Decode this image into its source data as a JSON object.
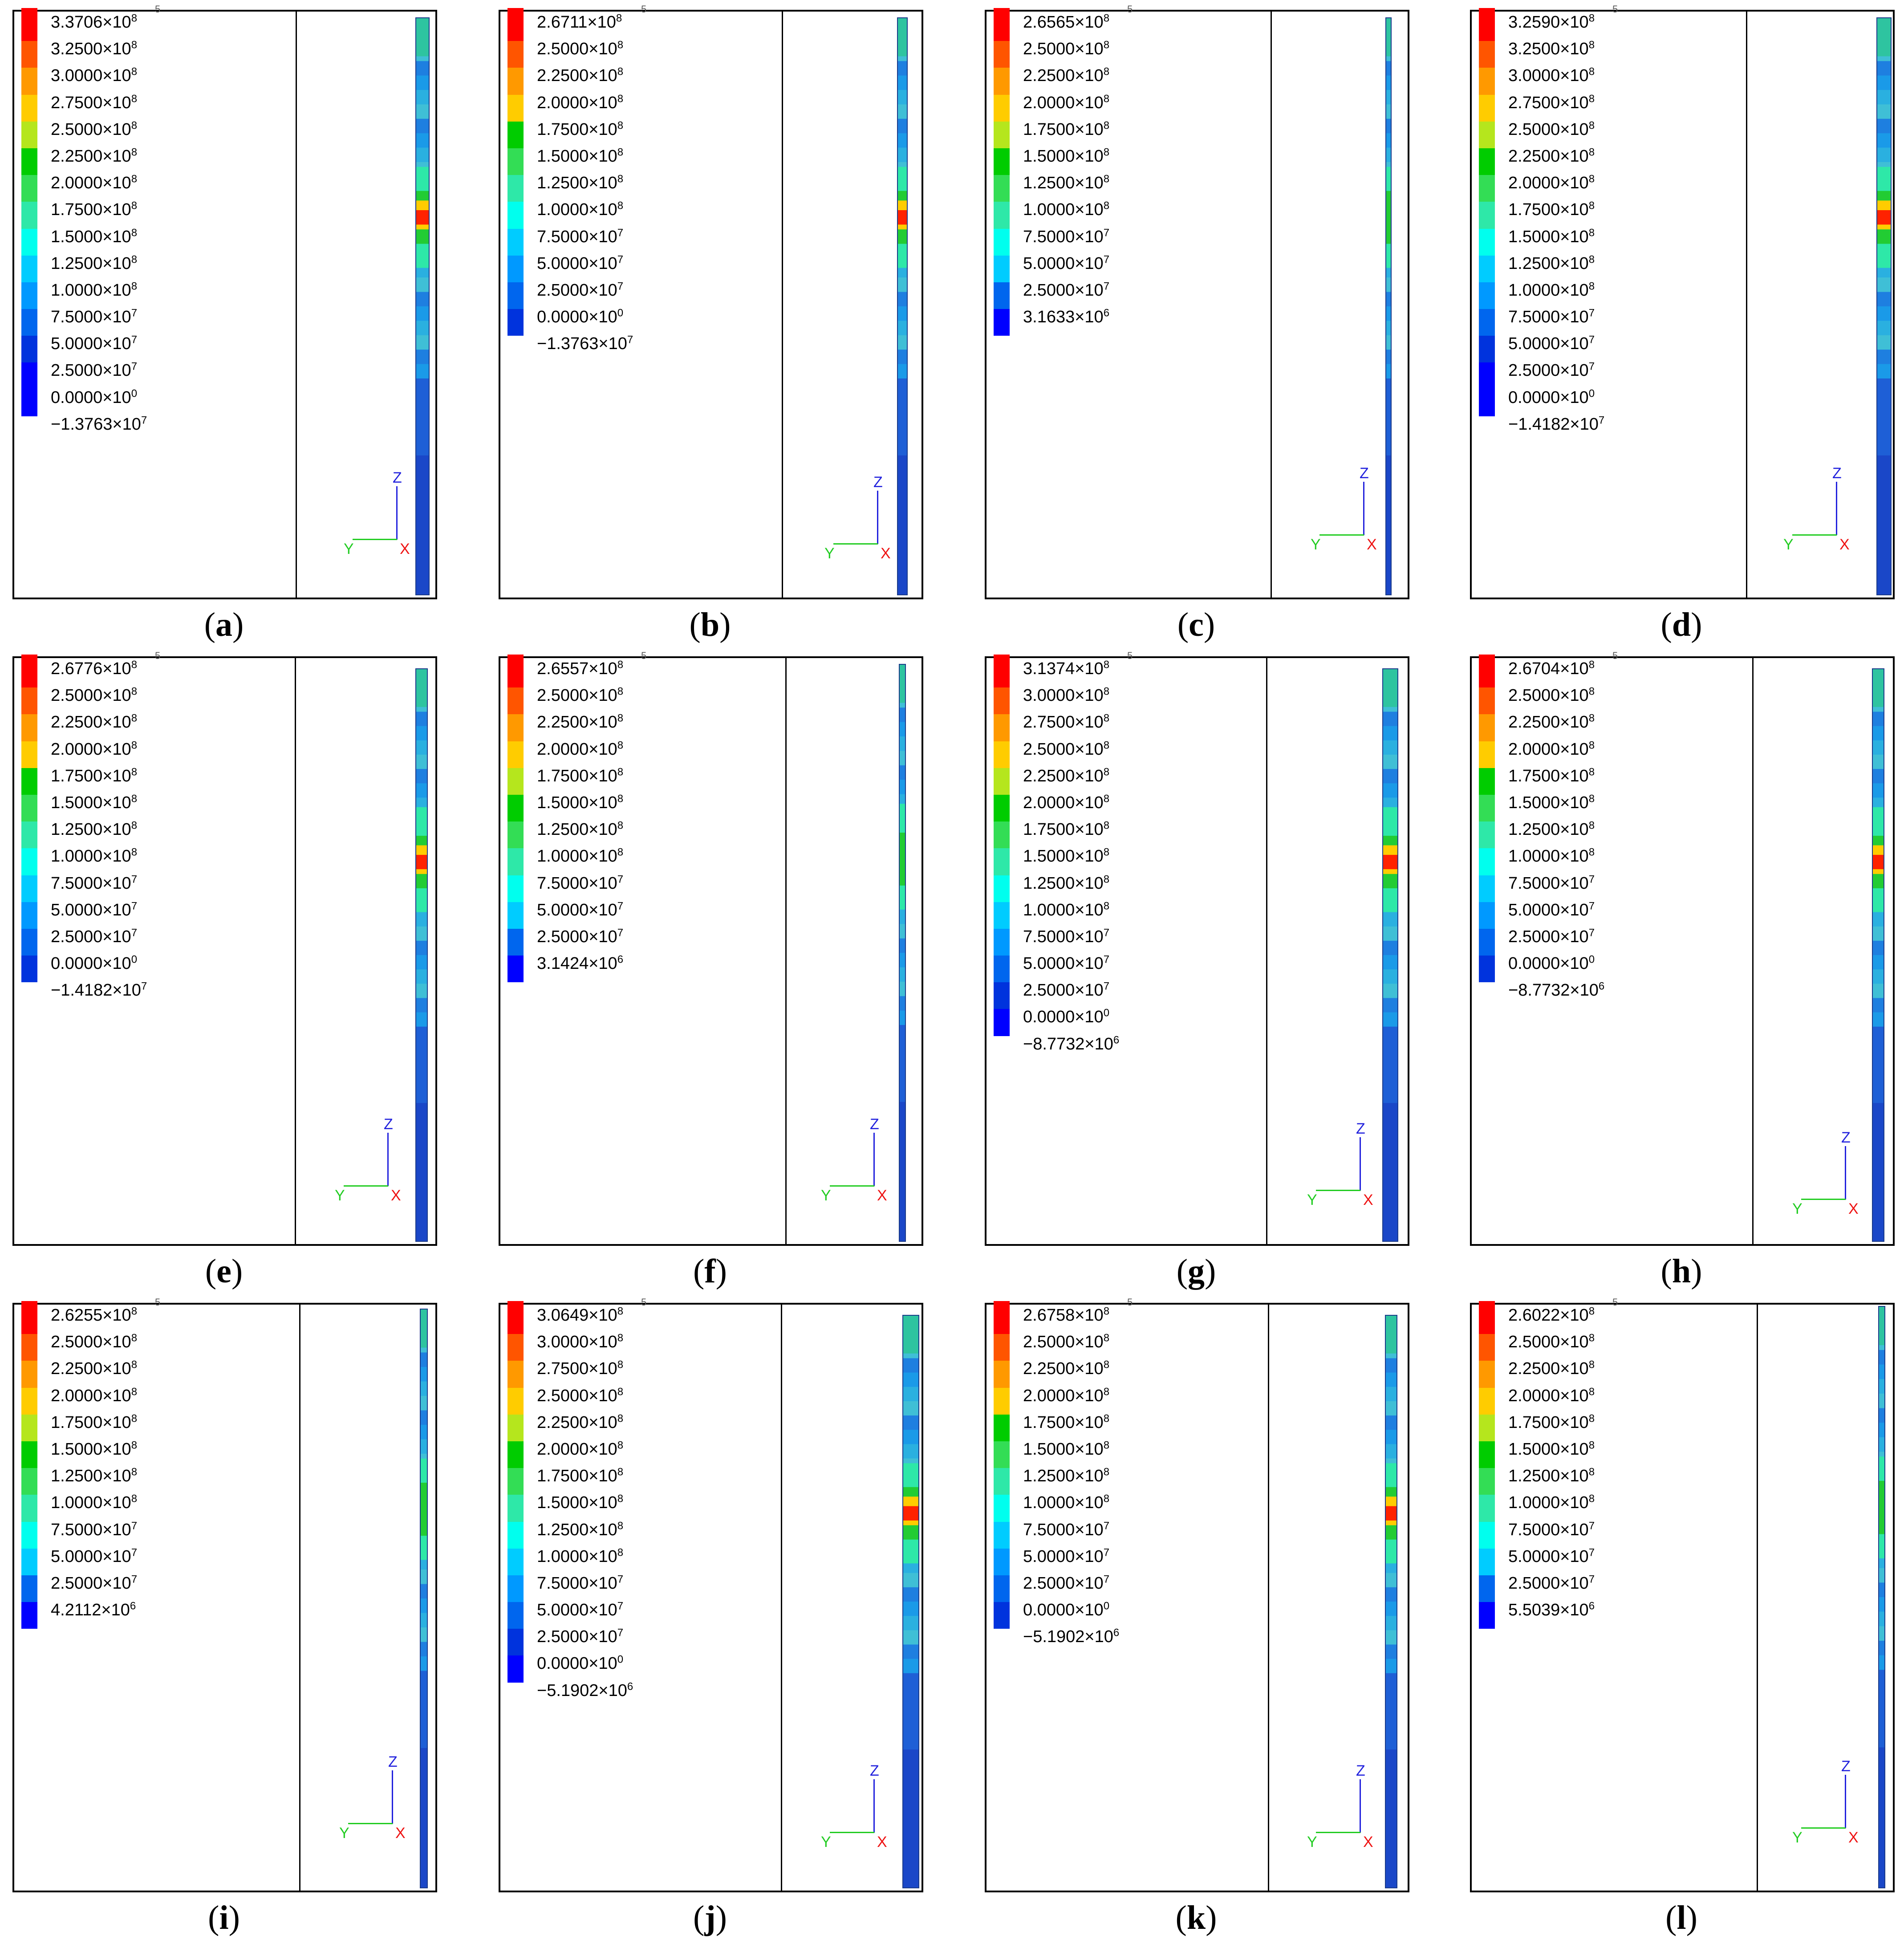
{
  "colors": [
    "#ff0000",
    "#ff5500",
    "#ff9900",
    "#ffcc00",
    "#b5e61d",
    "#00cc00",
    "#33dd55",
    "#2ee8a8",
    "#00ffee",
    "#00ccff",
    "#0099ff",
    "#0066ee",
    "#0033dd",
    "#0000ff"
  ],
  "unit_fragment": "5",
  "triad": {
    "z": "Z",
    "y": "Y",
    "x": "X"
  },
  "panels": [
    {
      "id": "a",
      "labels": [
        "3.3706×10^8",
        "3.2500×10^8",
        "3.0000×10^8",
        "2.7500×10^8",
        "2.5000×10^8",
        "2.2500×10^8",
        "2.0000×10^8",
        "1.7500×10^8",
        "1.5000×10^8",
        "1.2500×10^8",
        "1.0000×10^8",
        "7.5000×10^7",
        "5.0000×10^7",
        "2.5000×10^7",
        "0.0000×10^0",
        "−1.3763×10^7"
      ],
      "swatches": [
        "#ff0000",
        "#ff5500",
        "#ff9900",
        "#ffcc00",
        "#b5e61d",
        "#00cc00",
        "#33dd55",
        "#2ee8a8",
        "#00ffee",
        "#00ccff",
        "#0099ff",
        "#0066ee",
        "#0033dd",
        "#0000ff",
        "#0000ff"
      ],
      "caption": "a",
      "hot_center": 0.34,
      "hot_level": 1.0,
      "rod_width": 30
    },
    {
      "id": "b",
      "labels": [
        "2.6711×10^8",
        "2.5000×10^8",
        "2.2500×10^8",
        "2.0000×10^8",
        "1.7500×10^8",
        "1.5000×10^8",
        "1.2500×10^8",
        "1.0000×10^8",
        "7.5000×10^7",
        "5.0000×10^7",
        "2.5000×10^7",
        "0.0000×10^0",
        "−1.3763×10^7"
      ],
      "swatches": [
        "#ff0000",
        "#ff5500",
        "#ff9900",
        "#ffcc00",
        "#00cc00",
        "#33dd55",
        "#2ee8a8",
        "#00ffee",
        "#00ccff",
        "#0099ff",
        "#0066ee",
        "#0033dd"
      ],
      "caption": "b",
      "hot_center": 0.34,
      "hot_level": 0.9,
      "rod_width": 22
    },
    {
      "id": "c",
      "labels": [
        "2.6565×10^8",
        "2.5000×10^8",
        "2.2500×10^8",
        "2.0000×10^8",
        "1.7500×10^8",
        "1.5000×10^8",
        "1.2500×10^8",
        "1.0000×10^8",
        "7.5000×10^7",
        "5.0000×10^7",
        "2.5000×10^7",
        "3.1633×10^6"
      ],
      "swatches": [
        "#ff0000",
        "#ff5500",
        "#ff9900",
        "#ffcc00",
        "#b5e61d",
        "#00cc00",
        "#33dd55",
        "#2ee8a8",
        "#00ffee",
        "#00ccff",
        "#0066ee",
        "#0000ff"
      ],
      "caption": "c",
      "hot_center": 0.34,
      "hot_level": 0.5,
      "rod_width": 12
    },
    {
      "id": "d",
      "labels": [
        "3.2590×10^8",
        "3.2500×10^8",
        "3.0000×10^8",
        "2.7500×10^8",
        "2.5000×10^8",
        "2.2500×10^8",
        "2.0000×10^8",
        "1.7500×10^8",
        "1.5000×10^8",
        "1.2500×10^8",
        "1.0000×10^8",
        "7.5000×10^7",
        "5.0000×10^7",
        "2.5000×10^7",
        "0.0000×10^0",
        "−1.4182×10^7"
      ],
      "swatches": [
        "#ff0000",
        "#ff5500",
        "#ff9900",
        "#ffcc00",
        "#b5e61d",
        "#00cc00",
        "#33dd55",
        "#2ee8a8",
        "#00ffee",
        "#00ccff",
        "#0099ff",
        "#0066ee",
        "#0033dd",
        "#0000ff",
        "#0000ff"
      ],
      "caption": "d",
      "hot_center": 0.34,
      "hot_level": 1.0,
      "rod_width": 32
    },
    {
      "id": "e",
      "labels": [
        "2.6776×10^8",
        "2.5000×10^8",
        "2.2500×10^8",
        "2.0000×10^8",
        "1.7500×10^8",
        "1.5000×10^8",
        "1.2500×10^8",
        "1.0000×10^8",
        "7.5000×10^7",
        "5.0000×10^7",
        "2.5000×10^7",
        "0.0000×10^0",
        "−1.4182×10^7"
      ],
      "swatches": [
        "#ff0000",
        "#ff5500",
        "#ff9900",
        "#ffcc00",
        "#00cc00",
        "#33dd55",
        "#2ee8a8",
        "#00ffee",
        "#00ccff",
        "#0099ff",
        "#0066ee",
        "#0033dd"
      ],
      "caption": "e",
      "hot_center": 0.33,
      "hot_level": 0.9,
      "rod_width": 26
    },
    {
      "id": "f",
      "labels": [
        "2.6557×10^8",
        "2.5000×10^8",
        "2.2500×10^8",
        "2.0000×10^8",
        "1.7500×10^8",
        "1.5000×10^8",
        "1.2500×10^8",
        "1.0000×10^8",
        "7.5000×10^7",
        "5.0000×10^7",
        "2.5000×10^7",
        "3.1424×10^6"
      ],
      "swatches": [
        "#ff0000",
        "#ff5500",
        "#ff9900",
        "#ffcc00",
        "#b5e61d",
        "#00cc00",
        "#33dd55",
        "#2ee8a8",
        "#00ffee",
        "#00ccff",
        "#0066ee",
        "#0000ff"
      ],
      "caption": "f",
      "hot_center": 0.33,
      "hot_level": 0.5,
      "rod_width": 14
    },
    {
      "id": "g",
      "labels": [
        "3.1374×10^8",
        "3.0000×10^8",
        "2.7500×10^8",
        "2.5000×10^8",
        "2.2500×10^8",
        "2.0000×10^8",
        "1.7500×10^8",
        "1.5000×10^8",
        "1.2500×10^8",
        "1.0000×10^8",
        "7.5000×10^7",
        "5.0000×10^7",
        "2.5000×10^7",
        "0.0000×10^0",
        "−8.7732×10^6"
      ],
      "swatches": [
        "#ff0000",
        "#ff5500",
        "#ff9900",
        "#ffcc00",
        "#b5e61d",
        "#00cc00",
        "#33dd55",
        "#2ee8a8",
        "#00ffee",
        "#00ccff",
        "#0099ff",
        "#0066ee",
        "#0033dd",
        "#0000ff"
      ],
      "caption": "g",
      "hot_center": 0.33,
      "hot_level": 1.0,
      "rod_width": 34
    },
    {
      "id": "h",
      "labels": [
        "2.6704×10^8",
        "2.5000×10^8",
        "2.2500×10^8",
        "2.0000×10^8",
        "1.7500×10^8",
        "1.5000×10^8",
        "1.2500×10^8",
        "1.0000×10^8",
        "7.5000×10^7",
        "5.0000×10^7",
        "2.5000×10^7",
        "0.0000×10^0",
        "−8.7732×10^6"
      ],
      "swatches": [
        "#ff0000",
        "#ff5500",
        "#ff9900",
        "#ffcc00",
        "#00cc00",
        "#33dd55",
        "#2ee8a8",
        "#00ffee",
        "#00ccff",
        "#0099ff",
        "#0066ee",
        "#0033dd"
      ],
      "caption": "h",
      "hot_center": 0.33,
      "hot_level": 0.9,
      "rod_width": 26
    },
    {
      "id": "i",
      "labels": [
        "2.6255×10^8",
        "2.5000×10^8",
        "2.2500×10^8",
        "2.0000×10^8",
        "1.7500×10^8",
        "1.5000×10^8",
        "1.2500×10^8",
        "1.0000×10^8",
        "7.5000×10^7",
        "5.0000×10^7",
        "2.5000×10^7",
        "4.2112×10^6"
      ],
      "swatches": [
        "#ff0000",
        "#ff5500",
        "#ff9900",
        "#ffcc00",
        "#b5e61d",
        "#00cc00",
        "#33dd55",
        "#2ee8a8",
        "#00ffee",
        "#00ccff",
        "#0066ee",
        "#0000ff"
      ],
      "caption": "i",
      "hot_center": 0.34,
      "hot_level": 0.55,
      "rod_width": 16
    },
    {
      "id": "j",
      "labels": [
        "3.0649×10^8",
        "3.0000×10^8",
        "2.7500×10^8",
        "2.5000×10^8",
        "2.2500×10^8",
        "2.0000×10^8",
        "1.7500×10^8",
        "1.5000×10^8",
        "1.2500×10^8",
        "1.0000×10^8",
        "7.5000×10^7",
        "5.0000×10^7",
        "2.5000×10^7",
        "0.0000×10^0",
        "−5.1902×10^6"
      ],
      "swatches": [
        "#ff0000",
        "#ff5500",
        "#ff9900",
        "#ffcc00",
        "#b5e61d",
        "#00cc00",
        "#33dd55",
        "#2ee8a8",
        "#00ffee",
        "#00ccff",
        "#0099ff",
        "#0066ee",
        "#0033dd",
        "#0000ff"
      ],
      "caption": "j",
      "hot_center": 0.34,
      "hot_level": 1.0,
      "rod_width": 36
    },
    {
      "id": "k",
      "labels": [
        "2.6758×10^8",
        "2.5000×10^8",
        "2.2500×10^8",
        "2.0000×10^8",
        "1.7500×10^8",
        "1.5000×10^8",
        "1.2500×10^8",
        "1.0000×10^8",
        "7.5000×10^7",
        "5.0000×10^7",
        "2.5000×10^7",
        "0.0000×10^0",
        "−5.1902×10^6"
      ],
      "swatches": [
        "#ff0000",
        "#ff5500",
        "#ff9900",
        "#ffcc00",
        "#00cc00",
        "#33dd55",
        "#2ee8a8",
        "#00ffee",
        "#00ccff",
        "#0099ff",
        "#0066ee",
        "#0033dd"
      ],
      "caption": "k",
      "hot_center": 0.34,
      "hot_level": 0.9,
      "rod_width": 26
    },
    {
      "id": "l",
      "labels": [
        "2.6022×10^8",
        "2.5000×10^8",
        "2.2500×10^8",
        "2.0000×10^8",
        "1.7500×10^8",
        "1.5000×10^8",
        "1.2500×10^8",
        "1.0000×10^8",
        "7.5000×10^7",
        "5.0000×10^7",
        "2.5000×10^7",
        "5.5039×10^6"
      ],
      "swatches": [
        "#ff0000",
        "#ff5500",
        "#ff9900",
        "#ffcc00",
        "#b5e61d",
        "#00cc00",
        "#33dd55",
        "#2ee8a8",
        "#00ffee",
        "#00ccff",
        "#0066ee",
        "#0000ff"
      ],
      "caption": "l",
      "hot_center": 0.34,
      "hot_level": 0.5,
      "rod_width": 14
    }
  ]
}
